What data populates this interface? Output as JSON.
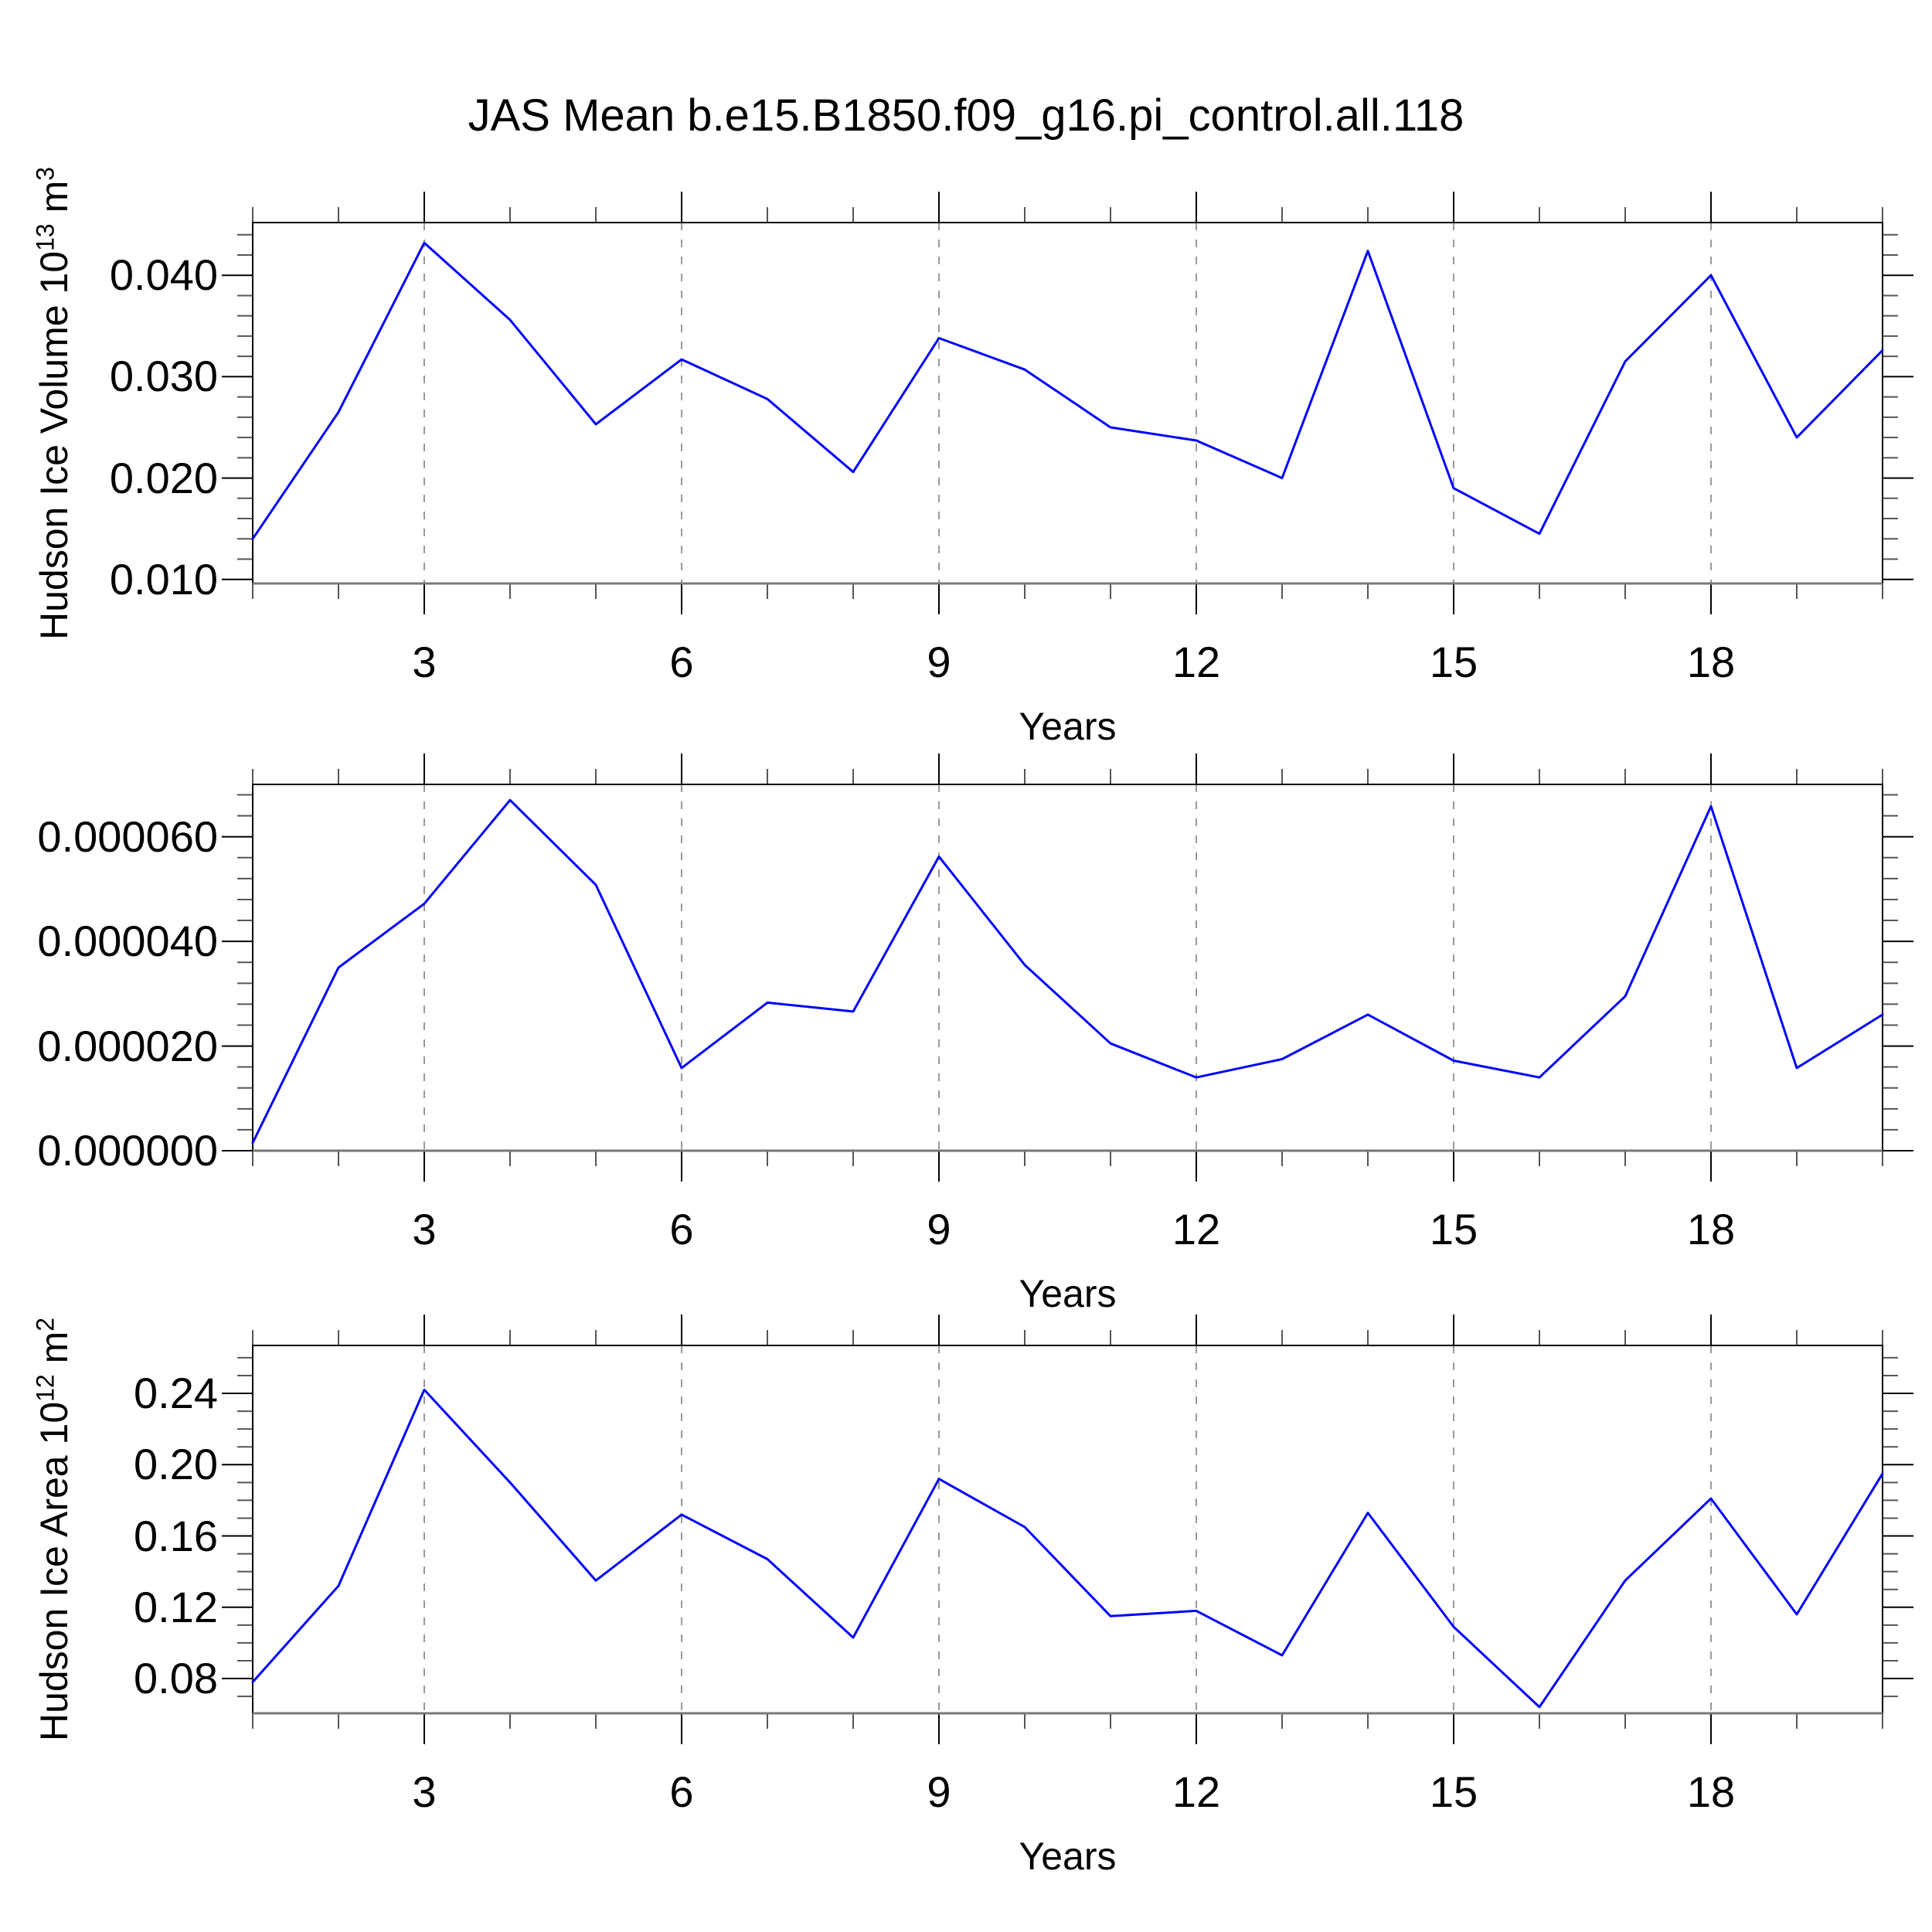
{
  "title": "JAS Mean b.e15.B1850.f09_g16.pi_control.all.118",
  "colors": {
    "line": "#0000ff",
    "grid": "#999999",
    "frame": "#000000",
    "baseline": "#777777",
    "tick_major": "#000000",
    "tick_minor": "#555555",
    "text": "#000000",
    "background": "#ffffff"
  },
  "chart_data": [
    {
      "type": "line",
      "ylabel": {
        "text": "Hudson Ice Volume 10",
        "sup1": "13",
        "mid": " m",
        "sup2": "3"
      },
      "xlabel": "Years",
      "x": [
        1,
        2,
        3,
        4,
        5,
        6,
        7,
        8,
        9,
        10,
        11,
        12,
        13,
        14,
        15,
        16,
        17,
        18,
        19,
        20
      ],
      "values": [
        0.014,
        0.0265,
        0.0432,
        0.0356,
        0.0253,
        0.0317,
        0.0278,
        0.0206,
        0.0338,
        0.0307,
        0.025,
        0.0237,
        0.02,
        0.0424,
        0.019,
        0.0145,
        0.0315,
        0.04,
        0.024,
        0.0326
      ],
      "xlim": [
        1,
        20
      ],
      "ylim": [
        0.0096,
        0.0452
      ],
      "yticks": {
        "values": [
          0.01,
          0.02,
          0.03,
          0.04
        ],
        "labels": [
          "0.010",
          "0.020",
          "0.030",
          "0.040"
        ],
        "minor_step": 0.002
      },
      "xticks": {
        "values": [
          3,
          6,
          9,
          12,
          15,
          18
        ],
        "labels": [
          "3",
          "6",
          "9",
          "12",
          "15",
          "18"
        ],
        "minor_step": 1
      },
      "grid": "vertical-dashed",
      "legend": "none"
    },
    {
      "type": "line",
      "ylabel": null,
      "xlabel": "Years",
      "x": [
        1,
        2,
        3,
        4,
        5,
        6,
        7,
        8,
        9,
        10,
        11,
        12,
        13,
        14,
        15,
        16,
        17,
        18,
        19,
        20
      ],
      "values": [
        1.5e-06,
        3.5e-05,
        4.72e-05,
        6.7e-05,
        5.08e-05,
        1.58e-05,
        2.83e-05,
        2.66e-05,
        5.62e-05,
        3.55e-05,
        2.05e-05,
        1.4e-05,
        1.75e-05,
        2.6e-05,
        1.72e-05,
        1.4e-05,
        2.95e-05,
        6.58e-05,
        1.58e-05,
        2.6e-05
      ],
      "xlim": [
        1,
        20
      ],
      "ylim": [
        0.0,
        7e-05
      ],
      "yticks": {
        "values": [
          0.0,
          2e-05,
          4e-05,
          6e-05
        ],
        "labels": [
          "0.000000",
          "0.000020",
          "0.000040",
          "0.000060"
        ],
        "minor_step": 4e-06
      },
      "xticks": {
        "values": [
          3,
          6,
          9,
          12,
          15,
          18
        ],
        "labels": [
          "3",
          "6",
          "9",
          "12",
          "15",
          "18"
        ],
        "minor_step": 1
      },
      "grid": "vertical-dashed",
      "legend": "none"
    },
    {
      "type": "line",
      "ylabel": {
        "text": "Hudson Ice Area 10",
        "sup1": "12",
        "mid": " m",
        "sup2": "2"
      },
      "xlabel": "Years",
      "x": [
        1,
        2,
        3,
        4,
        5,
        6,
        7,
        8,
        9,
        10,
        11,
        12,
        13,
        14,
        15,
        16,
        17,
        18,
        19,
        20
      ],
      "values": [
        0.078,
        0.132,
        0.242,
        0.19,
        0.135,
        0.172,
        0.147,
        0.103,
        0.192,
        0.165,
        0.115,
        0.118,
        0.093,
        0.173,
        0.109,
        0.064,
        0.135,
        0.181,
        0.116,
        0.195
      ],
      "xlim": [
        1,
        20
      ],
      "ylim": [
        0.0605,
        0.2669
      ],
      "yticks": {
        "values": [
          0.08,
          0.12,
          0.16,
          0.2,
          0.24
        ],
        "labels": [
          "0.08",
          "0.12",
          "0.16",
          "0.20",
          "0.24"
        ],
        "minor_step": 0.01
      },
      "xticks": {
        "values": [
          3,
          6,
          9,
          12,
          15,
          18
        ],
        "labels": [
          "3",
          "6",
          "9",
          "12",
          "15",
          "18"
        ],
        "minor_step": 1
      },
      "grid": "vertical-dashed",
      "legend": "none"
    }
  ]
}
